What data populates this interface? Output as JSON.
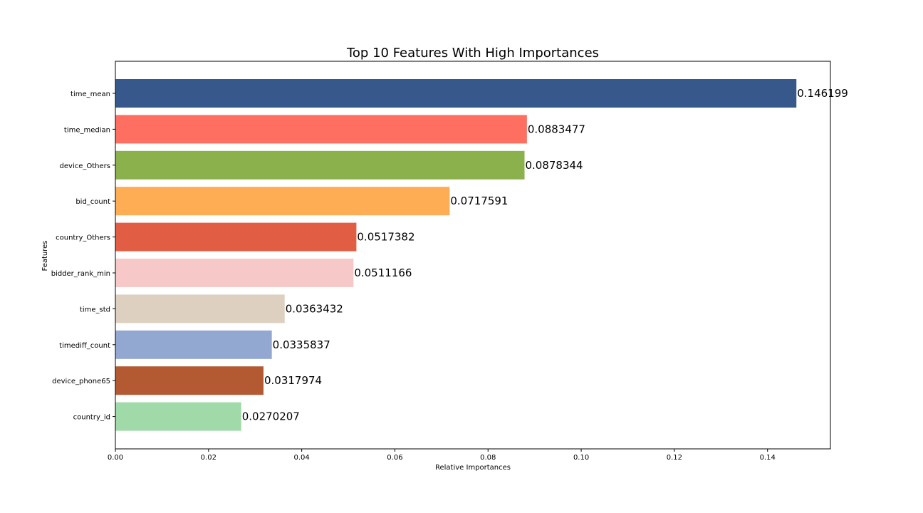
{
  "chart_data": {
    "type": "bar",
    "orientation": "horizontal",
    "title": "Top 10 Features With High Importances",
    "xlabel": "Relative Importances",
    "ylabel": "Features",
    "xlim": [
      0,
      0.1535
    ],
    "xticks": [
      0.0,
      0.02,
      0.04,
      0.06,
      0.08,
      0.1,
      0.12,
      0.14
    ],
    "xtick_labels": [
      "0.00",
      "0.02",
      "0.04",
      "0.06",
      "0.08",
      "0.10",
      "0.12",
      "0.14"
    ],
    "grid": false,
    "categories": [
      "time_mean",
      "time_median",
      "device_Others",
      "bid_count",
      "country_Others",
      "bidder_rank_min",
      "time_std",
      "timediff_count",
      "device_phone65",
      "country_id"
    ],
    "values": [
      0.146199,
      0.0883477,
      0.0878344,
      0.0717591,
      0.0517382,
      0.0511166,
      0.0363432,
      0.0335837,
      0.0317974,
      0.0270207
    ],
    "value_labels": [
      "0.146199",
      "0.0883477",
      "0.0878344",
      "0.0717591",
      "0.0517382",
      "0.0511166",
      "0.0363432",
      "0.0335837",
      "0.0317974",
      "0.0270207"
    ],
    "colors": [
      "#36588b",
      "#fe6f61",
      "#8ab14c",
      "#fead54",
      "#e15e44",
      "#f7c8c8",
      "#ddd0c0",
      "#92a8d1",
      "#b45a32",
      "#a0daa9"
    ]
  }
}
